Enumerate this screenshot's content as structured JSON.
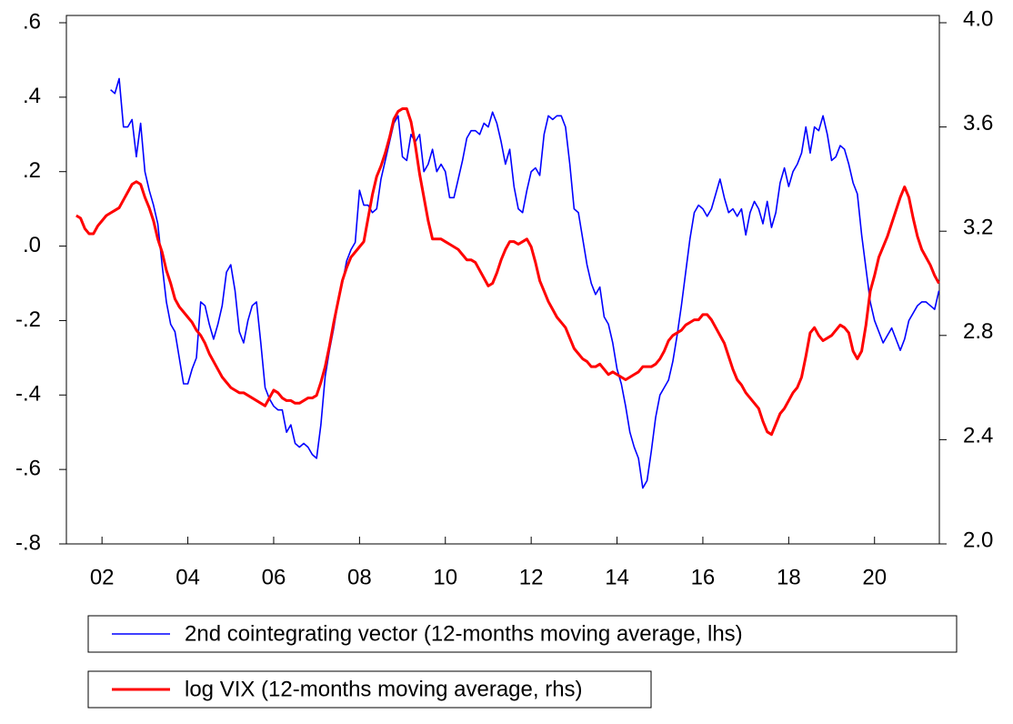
{
  "chart_data": {
    "type": "line",
    "legend": "bottom",
    "xlim": [
      2001.17,
      2021.51
    ],
    "xticks": [
      {
        "value": 2002,
        "label": "02"
      },
      {
        "value": 2004,
        "label": "04"
      },
      {
        "value": 2006,
        "label": "06"
      },
      {
        "value": 2008,
        "label": "08"
      },
      {
        "value": 2010,
        "label": "10"
      },
      {
        "value": 2012,
        "label": "12"
      },
      {
        "value": 2014,
        "label": "14"
      },
      {
        "value": 2016,
        "label": "16"
      },
      {
        "value": 2018,
        "label": "18"
      },
      {
        "value": 2020,
        "label": "20"
      }
    ],
    "ylim": [
      -0.8,
      0.6
    ],
    "yticks": [
      {
        "value": -0.8,
        "label": "-.8"
      },
      {
        "value": -0.6,
        "label": "-.6"
      },
      {
        "value": -0.4,
        "label": "-.4"
      },
      {
        "value": -0.2,
        "label": "-.2"
      },
      {
        "value": 0,
        "label": ".0"
      },
      {
        "value": 0.2,
        "label": ".2"
      },
      {
        "value": 0.4,
        "label": ".4"
      },
      {
        "value": 0.6,
        "label": ".6"
      }
    ],
    "y2lim": [
      2.0,
      4.0
    ],
    "y2ticks": [
      {
        "value": 2.0,
        "label": "2.0"
      },
      {
        "value": 2.4,
        "label": "2.4"
      },
      {
        "value": 2.8,
        "label": "2.8"
      },
      {
        "value": 3.2,
        "label": "3.2"
      },
      {
        "value": 3.6,
        "label": "3.6"
      },
      {
        "value": 4.0,
        "label": "4.0"
      }
    ],
    "x": [
      2001.4,
      2001.5,
      2001.6,
      2001.7,
      2001.8,
      2001.9,
      2002.0,
      2002.1,
      2002.2,
      2002.3,
      2002.4,
      2002.5,
      2002.6,
      2002.7,
      2002.8,
      2002.9,
      2003.0,
      2003.1,
      2003.2,
      2003.3,
      2003.4,
      2003.5,
      2003.6,
      2003.7,
      2003.8,
      2003.9,
      2004.0,
      2004.1,
      2004.2,
      2004.3,
      2004.4,
      2004.5,
      2004.6,
      2004.7,
      2004.8,
      2004.9,
      2005.0,
      2005.1,
      2005.2,
      2005.3,
      2005.4,
      2005.5,
      2005.6,
      2005.7,
      2005.8,
      2005.9,
      2006.0,
      2006.1,
      2006.2,
      2006.3,
      2006.4,
      2006.5,
      2006.6,
      2006.7,
      2006.8,
      2006.9,
      2007.0,
      2007.1,
      2007.2,
      2007.3,
      2007.4,
      2007.5,
      2007.6,
      2007.7,
      2007.8,
      2007.9,
      2008.0,
      2008.1,
      2008.2,
      2008.3,
      2008.4,
      2008.5,
      2008.6,
      2008.7,
      2008.8,
      2008.9,
      2009.0,
      2009.1,
      2009.2,
      2009.3,
      2009.4,
      2009.5,
      2009.6,
      2009.7,
      2009.8,
      2009.9,
      2010.0,
      2010.1,
      2010.2,
      2010.3,
      2010.4,
      2010.5,
      2010.6,
      2010.7,
      2010.8,
      2010.9,
      2011.0,
      2011.1,
      2011.2,
      2011.3,
      2011.4,
      2011.5,
      2011.6,
      2011.7,
      2011.8,
      2011.9,
      2012.0,
      2012.1,
      2012.2,
      2012.3,
      2012.4,
      2012.5,
      2012.6,
      2012.7,
      2012.8,
      2012.9,
      2013.0,
      2013.1,
      2013.2,
      2013.3,
      2013.4,
      2013.5,
      2013.6,
      2013.7,
      2013.8,
      2013.9,
      2014.0,
      2014.1,
      2014.2,
      2014.3,
      2014.4,
      2014.5,
      2014.6,
      2014.7,
      2014.8,
      2014.9,
      2015.0,
      2015.1,
      2015.2,
      2015.3,
      2015.4,
      2015.5,
      2015.6,
      2015.7,
      2015.8,
      2015.9,
      2016.0,
      2016.1,
      2016.2,
      2016.3,
      2016.4,
      2016.5,
      2016.6,
      2016.7,
      2016.8,
      2016.9,
      2017.0,
      2017.1,
      2017.2,
      2017.3,
      2017.4,
      2017.5,
      2017.6,
      2017.7,
      2017.8,
      2017.9,
      2018.0,
      2018.1,
      2018.2,
      2018.3,
      2018.4,
      2018.5,
      2018.6,
      2018.7,
      2018.8,
      2018.9,
      2019.0,
      2019.1,
      2019.2,
      2019.3,
      2019.4,
      2019.5,
      2019.6,
      2019.7,
      2019.8,
      2019.9,
      2020.0,
      2020.1,
      2020.2,
      2020.3,
      2020.4,
      2020.5,
      2020.6,
      2020.7,
      2020.8,
      2020.9,
      2021.0,
      2021.1,
      2021.2,
      2021.3,
      2021.4,
      2021.5
    ],
    "series": [
      {
        "name": "2nd cointegrating vector (12-months moving average, lhs)",
        "color": "#0000ff",
        "axis": "y",
        "values": [
          null,
          null,
          null,
          null,
          null,
          null,
          null,
          null,
          0.42,
          0.41,
          0.45,
          0.32,
          0.32,
          0.34,
          0.24,
          0.33,
          0.2,
          0.15,
          0.11,
          0.06,
          -0.05,
          -0.15,
          -0.21,
          -0.23,
          -0.3,
          -0.37,
          -0.37,
          -0.33,
          -0.3,
          -0.15,
          -0.16,
          -0.21,
          -0.25,
          -0.21,
          -0.16,
          -0.07,
          -0.05,
          -0.12,
          -0.23,
          -0.26,
          -0.2,
          -0.16,
          -0.15,
          -0.26,
          -0.38,
          -0.41,
          -0.43,
          -0.44,
          -0.44,
          -0.5,
          -0.48,
          -0.53,
          -0.54,
          -0.53,
          -0.54,
          -0.56,
          -0.57,
          -0.48,
          -0.35,
          -0.28,
          -0.22,
          -0.15,
          -0.1,
          -0.04,
          -0.01,
          0.01,
          0.15,
          0.11,
          0.11,
          0.09,
          0.1,
          0.18,
          0.23,
          0.28,
          0.33,
          0.35,
          0.24,
          0.23,
          0.3,
          0.28,
          0.3,
          0.2,
          0.22,
          0.26,
          0.2,
          0.22,
          0.2,
          0.13,
          0.13,
          0.18,
          0.23,
          0.29,
          0.31,
          0.31,
          0.3,
          0.33,
          0.32,
          0.36,
          0.33,
          0.28,
          0.22,
          0.26,
          0.16,
          0.1,
          0.09,
          0.15,
          0.2,
          0.21,
          0.19,
          0.3,
          0.35,
          0.34,
          0.35,
          0.35,
          0.32,
          0.22,
          0.1,
          0.09,
          0.02,
          -0.05,
          -0.1,
          -0.13,
          -0.11,
          -0.19,
          -0.21,
          -0.26,
          -0.33,
          -0.37,
          -0.43,
          -0.5,
          -0.54,
          -0.57,
          -0.65,
          -0.63,
          -0.55,
          -0.46,
          -0.4,
          -0.38,
          -0.36,
          -0.31,
          -0.24,
          -0.16,
          -0.07,
          0.02,
          0.09,
          0.11,
          0.1,
          0.08,
          0.1,
          0.14,
          0.18,
          0.13,
          0.09,
          0.1,
          0.08,
          0.1,
          0.03,
          0.09,
          0.12,
          0.1,
          0.06,
          0.12,
          0.05,
          0.09,
          0.17,
          0.21,
          0.16,
          0.2,
          0.22,
          0.25,
          0.32,
          0.25,
          0.32,
          0.31,
          0.35,
          0.3,
          0.23,
          0.24,
          0.27,
          0.26,
          0.22,
          0.17,
          0.14,
          0.03,
          -0.06,
          -0.15,
          -0.2,
          -0.23,
          -0.26,
          -0.24,
          -0.22,
          -0.25,
          -0.28,
          -0.25,
          -0.2,
          -0.18,
          -0.16,
          -0.15,
          -0.15,
          -0.16,
          -0.17,
          -0.12
        ]
      },
      {
        "name": "log VIX (12-months moving average, rhs)",
        "color": "#ff0000",
        "axis": "y2",
        "values": [
          3.26,
          3.25,
          3.21,
          3.19,
          3.19,
          3.22,
          3.24,
          3.26,
          3.27,
          3.28,
          3.29,
          3.32,
          3.35,
          3.38,
          3.39,
          3.38,
          3.33,
          3.29,
          3.24,
          3.17,
          3.12,
          3.05,
          3.0,
          2.94,
          2.91,
          2.89,
          2.87,
          2.85,
          2.82,
          2.8,
          2.77,
          2.73,
          2.7,
          2.67,
          2.64,
          2.62,
          2.6,
          2.59,
          2.58,
          2.58,
          2.57,
          2.56,
          2.55,
          2.54,
          2.53,
          2.56,
          2.59,
          2.58,
          2.56,
          2.55,
          2.55,
          2.54,
          2.54,
          2.55,
          2.56,
          2.56,
          2.57,
          2.62,
          2.68,
          2.76,
          2.85,
          2.93,
          3.01,
          3.06,
          3.1,
          3.12,
          3.14,
          3.16,
          3.25,
          3.34,
          3.41,
          3.45,
          3.5,
          3.56,
          3.63,
          3.66,
          3.67,
          3.67,
          3.62,
          3.53,
          3.42,
          3.33,
          3.24,
          3.17,
          3.17,
          3.17,
          3.16,
          3.15,
          3.14,
          3.13,
          3.11,
          3.09,
          3.09,
          3.08,
          3.05,
          3.02,
          2.99,
          3.0,
          3.04,
          3.09,
          3.13,
          3.16,
          3.16,
          3.15,
          3.16,
          3.17,
          3.14,
          3.08,
          3.01,
          2.97,
          2.93,
          2.9,
          2.87,
          2.85,
          2.83,
          2.79,
          2.75,
          2.73,
          2.71,
          2.7,
          2.68,
          2.68,
          2.69,
          2.67,
          2.65,
          2.66,
          2.65,
          2.64,
          2.63,
          2.64,
          2.65,
          2.66,
          2.68,
          2.68,
          2.68,
          2.69,
          2.71,
          2.74,
          2.78,
          2.8,
          2.81,
          2.82,
          2.84,
          2.85,
          2.86,
          2.86,
          2.88,
          2.88,
          2.86,
          2.83,
          2.8,
          2.77,
          2.72,
          2.67,
          2.63,
          2.61,
          2.58,
          2.56,
          2.54,
          2.52,
          2.47,
          2.43,
          2.42,
          2.46,
          2.5,
          2.52,
          2.55,
          2.58,
          2.6,
          2.64,
          2.72,
          2.81,
          2.83,
          2.8,
          2.78,
          2.79,
          2.8,
          2.82,
          2.84,
          2.83,
          2.81,
          2.74,
          2.71,
          2.74,
          2.84,
          2.97,
          3.03,
          3.1,
          3.14,
          3.18,
          3.23,
          3.28,
          3.33,
          3.37,
          3.33,
          3.25,
          3.18,
          3.13,
          3.1,
          3.07,
          3.03,
          3.0
        ]
      }
    ]
  }
}
